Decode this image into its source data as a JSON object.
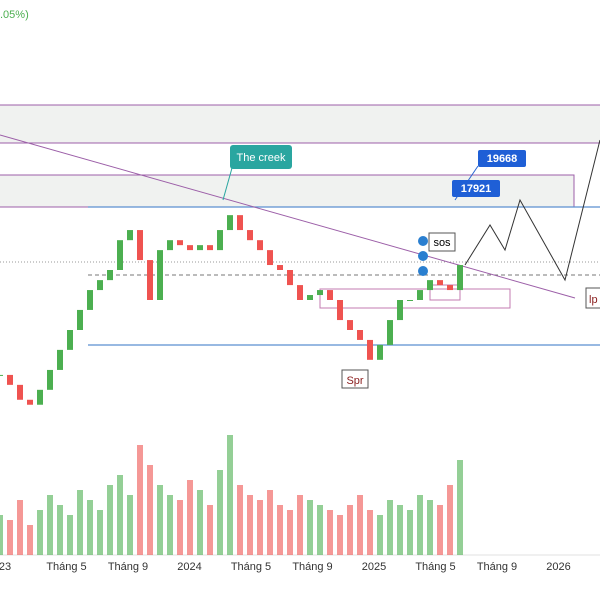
{
  "header": {
    "change": ".05%)"
  },
  "chart_data": {
    "type": "candle",
    "values": [
      7030,
      6450,
      5580,
      5290,
      6160,
      7320,
      8490,
      9650,
      10820,
      11980,
      12560,
      13150,
      14890,
      15480,
      13730,
      11400,
      14310,
      14890,
      14600,
      14310,
      14600,
      14310,
      15480,
      16350,
      15480,
      14890,
      14310,
      13440,
      13150,
      12270,
      11400,
      11690,
      11980,
      11400,
      10230,
      9650,
      9070,
      7910,
      8780,
      10230,
      11400,
      11400,
      11980,
      12560,
      12270,
      11980,
      13440
    ],
    "ylim": [
      4400,
      28900
    ],
    "up_color": "#4caf50",
    "down_color": "#ef5350",
    "volume": [
      40,
      35,
      55,
      30,
      45,
      60,
      50,
      40,
      65,
      55,
      45,
      70,
      80,
      60,
      110,
      90,
      70,
      60,
      55,
      75,
      65,
      50,
      85,
      120,
      70,
      60,
      55,
      65,
      50,
      45,
      60,
      55,
      50,
      45,
      40,
      50,
      60,
      45,
      40,
      55,
      50,
      45,
      60,
      55,
      50,
      70,
      95
    ],
    "volume_lim": [
      0,
      140
    ],
    "x_labels": [
      "23",
      "Tháng 5",
      "Tháng 9",
      "2024",
      "Tháng 5",
      "Tháng 9",
      "2025",
      "Tháng 5",
      "Tháng 9",
      "2026"
    ],
    "annotations": {
      "creek": "The creek",
      "target_high": "19668",
      "target_low": "17921",
      "sos": "sos",
      "spr": "Spr",
      "lps": "lp"
    }
  }
}
